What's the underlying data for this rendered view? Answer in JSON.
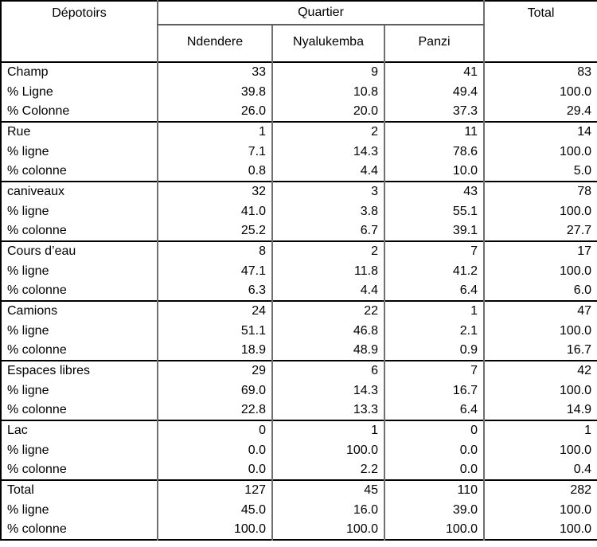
{
  "colors": {
    "outer_border": "#000000",
    "section_rule": "#000000",
    "grid_line": "#6f6f6f",
    "text": "#000000",
    "background": "#ffffff"
  },
  "chart_data": {
    "type": "table",
    "title": "",
    "header": {
      "row_dimension": "Dépotoirs",
      "column_group": "Quartier",
      "columns": [
        "Ndendere",
        "Nyalukemba",
        "Panzi"
      ],
      "total_label": "Total"
    },
    "sections": [
      {
        "rows": [
          {
            "label": "Champ",
            "values": [
              "33",
              "9",
              "41",
              "83"
            ]
          },
          {
            "label": "% Ligne",
            "values": [
              "39.8",
              "10.8",
              "49.4",
              "100.0"
            ]
          },
          {
            "label": "% Colonne",
            "values": [
              "26.0",
              "20.0",
              "37.3",
              "29.4"
            ]
          }
        ]
      },
      {
        "rows": [
          {
            "label": "Rue",
            "values": [
              "1",
              "2",
              "11",
              "14"
            ]
          },
          {
            "label": "% ligne",
            "values": [
              "7.1",
              "14.3",
              "78.6",
              "100.0"
            ]
          },
          {
            "label": "% colonne",
            "values": [
              "0.8",
              "4.4",
              "10.0",
              "5.0"
            ]
          }
        ]
      },
      {
        "rows": [
          {
            "label": "caniveaux",
            "values": [
              "32",
              "3",
              "43",
              "78"
            ]
          },
          {
            "label": "% ligne",
            "values": [
              "41.0",
              "3.8",
              "55.1",
              "100.0"
            ]
          },
          {
            "label": "% colonne",
            "values": [
              "25.2",
              "6.7",
              "39.1",
              "27.7"
            ]
          }
        ]
      },
      {
        "rows": [
          {
            "label": "Cours d’eau",
            "values": [
              "8",
              "2",
              "7",
              "17"
            ]
          },
          {
            "label": "% ligne",
            "values": [
              "47.1",
              "11.8",
              "41.2",
              "100.0"
            ]
          },
          {
            "label": "% colonne",
            "values": [
              "6.3",
              "4.4",
              "6.4",
              "6.0"
            ]
          }
        ]
      },
      {
        "rows": [
          {
            "label": "Camions",
            "values": [
              "24",
              "22",
              "1",
              "47"
            ]
          },
          {
            "label": "% ligne",
            "values": [
              "51.1",
              "46.8",
              "2.1",
              "100.0"
            ]
          },
          {
            "label": "% colonne",
            "values": [
              "18.9",
              "48.9",
              "0.9",
              "16.7"
            ]
          }
        ]
      },
      {
        "rows": [
          {
            "label": "Espaces libres",
            "values": [
              "29",
              "6",
              "7",
              "42"
            ]
          },
          {
            "label": "% ligne",
            "values": [
              "69.0",
              "14.3",
              "16.7",
              "100.0"
            ]
          },
          {
            "label": "% colonne",
            "values": [
              "22.8",
              "13.3",
              "6.4",
              "14.9"
            ]
          }
        ]
      },
      {
        "rows": [
          {
            "label": "Lac",
            "values": [
              "0",
              "1",
              "0",
              "1"
            ]
          },
          {
            "label": "% ligne",
            "values": [
              "0.0",
              "100.0",
              "0.0",
              "100.0"
            ]
          },
          {
            "label": "% colonne",
            "values": [
              "0.0",
              "2.2",
              "0.0",
              "0.4"
            ]
          }
        ]
      },
      {
        "rows": [
          {
            "label": "Total",
            "values": [
              "127",
              "45",
              "110",
              "282"
            ]
          },
          {
            "label": "% ligne",
            "values": [
              "45.0",
              "16.0",
              "39.0",
              "100.0"
            ]
          },
          {
            "label": "% colonne",
            "values": [
              "100.0",
              "100.0",
              "100.0",
              "100.0"
            ]
          }
        ]
      }
    ]
  }
}
